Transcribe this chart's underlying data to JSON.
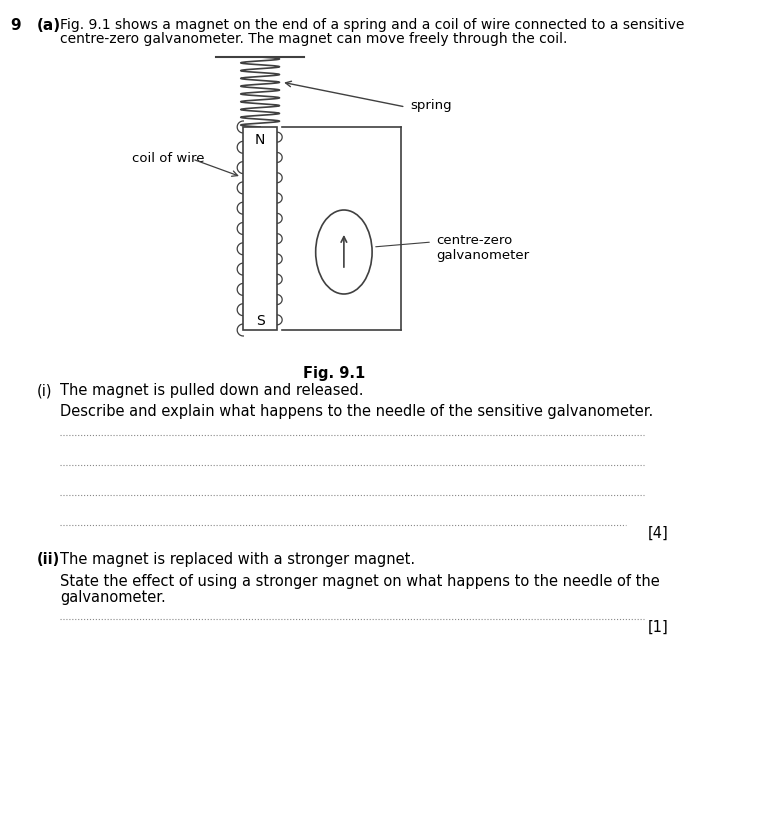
{
  "bg_color": "#ffffff",
  "question_number": "9",
  "part_label": "(a)",
  "intro_text_line1": "Fig. 9.1 shows a magnet on the end of a spring and a coil of wire connected to a sensitive",
  "intro_text_line2": "centre-zero galvanometer. The magnet can move freely through the coil.",
  "fig_label": "Fig. 9.1",
  "part_i_bold": "(i)",
  "part_i_text": "The magnet is pulled down and released.",
  "part_i_desc": "Describe and explain what happens to the needle of the sensitive galvanometer.",
  "part_ii_bold": "(ii)",
  "part_ii_text": "The magnet is replaced with a stronger magnet.",
  "part_ii_desc_line1": "State the effect of using a stronger magnet on what happens to the needle of the",
  "part_ii_desc_line2": "galvanometer.",
  "marks_4": "[4]",
  "marks_1": "[1]",
  "line_color": "#404040",
  "text_color": "#000000",
  "dot_line_color": "#888888"
}
